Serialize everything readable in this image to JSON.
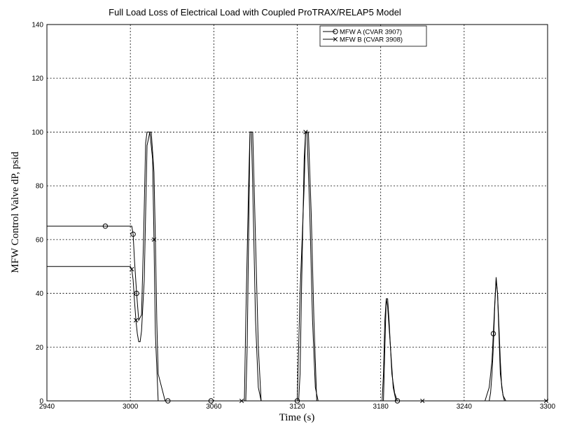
{
  "chart_data": {
    "type": "line",
    "title": "Full Load Loss of Electrical Load with Coupled ProTRAX/RELAP5 Model",
    "xlabel": "Time (s)",
    "ylabel": "MFW Control Valve dP, psid",
    "xlim": [
      2940,
      3300
    ],
    "ylim": [
      0,
      140
    ],
    "xticks": [
      2940,
      3000,
      3060,
      3120,
      3180,
      3240,
      3300
    ],
    "yticks": [
      0,
      20,
      40,
      60,
      80,
      100,
      120,
      140
    ],
    "grid": true,
    "legend_position": "top-right",
    "series": [
      {
        "name": "MFW A (CVAR 3907)",
        "marker": "circle",
        "marker_x": [
          2982,
          3002,
          3004.5,
          3027,
          3058,
          3120,
          3192,
          3261
        ],
        "x": [
          2940,
          3001,
          3002,
          3003,
          3004.5,
          3006,
          3008,
          3009.5,
          3011,
          3012,
          3013,
          3015,
          3017,
          3018,
          3019,
          3020,
          3025,
          3050,
          3083,
          3084,
          3085,
          3086,
          3087,
          3088,
          3090,
          3092,
          3094,
          3120,
          3122,
          3125,
          3126,
          3127,
          3128,
          3130,
          3132,
          3134,
          3158,
          3182,
          3183,
          3184,
          3185,
          3186,
          3187,
          3188,
          3190,
          3192,
          3255,
          3258,
          3260,
          3261,
          3262,
          3263,
          3264,
          3265,
          3266,
          3268,
          3270
        ],
        "y": [
          65,
          65,
          62,
          52,
          40,
          30,
          32,
          60,
          96,
          100,
          100,
          100,
          85,
          60,
          30,
          10,
          0,
          0,
          0,
          20,
          60,
          100,
          100,
          100,
          60,
          20,
          0,
          0,
          40,
          80,
          100,
          100,
          100,
          70,
          30,
          0,
          0,
          0,
          20,
          38,
          38,
          30,
          20,
          10,
          3,
          0,
          0,
          5,
          15,
          25,
          36,
          46,
          40,
          25,
          10,
          2,
          0
        ]
      },
      {
        "name": "MFW B (CVAR 3908)",
        "marker": "x",
        "marker_x": [
          3001,
          3004,
          3017,
          3080,
          3126,
          3210,
          3299
        ],
        "x": [
          2940,
          3000,
          3001,
          3002,
          3003,
          3004,
          3005,
          3006,
          3007,
          3008,
          3010,
          3011,
          3012,
          3014,
          3016,
          3017,
          3018,
          3020,
          3060,
          3082,
          3083,
          3085,
          3086,
          3087,
          3088,
          3090,
          3092,
          3094,
          3121,
          3122,
          3123,
          3125,
          3126,
          3127,
          3129,
          3131,
          3133,
          3135,
          3181,
          3182,
          3183,
          3184,
          3185,
          3187,
          3189,
          3191,
          3258,
          3259,
          3260,
          3261,
          3262,
          3263,
          3264,
          3265,
          3266,
          3267,
          3268,
          3269,
          3270,
          3300
        ],
        "y": [
          50,
          50,
          49,
          45,
          37,
          30,
          25,
          22,
          22,
          26,
          45,
          70,
          95,
          100,
          90,
          60,
          25,
          0,
          0,
          0,
          30,
          80,
          100,
          100,
          80,
          30,
          5,
          0,
          0,
          10,
          40,
          90,
          100,
          100,
          70,
          30,
          5,
          0,
          0,
          10,
          30,
          38,
          35,
          20,
          5,
          0,
          0,
          3,
          10,
          20,
          35,
          45,
          40,
          28,
          15,
          5,
          2,
          0,
          0,
          0
        ]
      }
    ]
  }
}
